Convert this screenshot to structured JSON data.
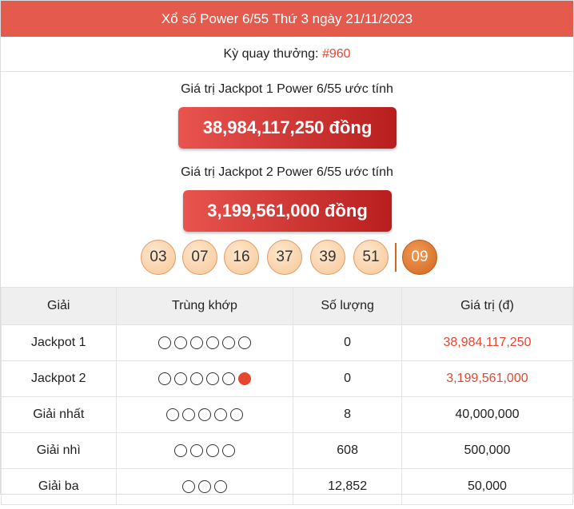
{
  "header": {
    "title": "Xổ số Power 6/55 Thứ 3 ngày 21/11/2023"
  },
  "draw": {
    "label": "Kỳ quay thưởng:",
    "number": "#960"
  },
  "jackpots": [
    {
      "label": "Giá trị Jackpot 1 Power 6/55 ước tính",
      "amount": "38,984,117,250 đồng"
    },
    {
      "label": "Giá trị Jackpot 2 Power 6/55 ước tính",
      "amount": "3,199,561,000 đồng"
    }
  ],
  "numbers": [
    "03",
    "07",
    "16",
    "37",
    "39",
    "51"
  ],
  "bonus_number": "09",
  "table": {
    "columns": [
      "Giải",
      "Trùng khớp",
      "Số lượng",
      "Giá trị (đ)"
    ],
    "rows": [
      {
        "prize": "Jackpot 1",
        "matches": 6,
        "bonus": false,
        "quantity": "0",
        "value": "38,984,117,250",
        "value_color": "#e8452f"
      },
      {
        "prize": "Jackpot 2",
        "matches": 5,
        "bonus": true,
        "quantity": "0",
        "value": "3,199,561,000",
        "value_color": "#e8452f"
      },
      {
        "prize": "Giải nhất",
        "matches": 5,
        "bonus": false,
        "quantity": "8",
        "value": "40,000,000",
        "value_color": "#222222"
      },
      {
        "prize": "Giải nhì",
        "matches": 4,
        "bonus": false,
        "quantity": "608",
        "value": "500,000",
        "value_color": "#222222"
      },
      {
        "prize": "Giải ba",
        "matches": 3,
        "bonus": false,
        "quantity": "12,852",
        "value": "50,000",
        "value_color": "#222222"
      }
    ]
  }
}
